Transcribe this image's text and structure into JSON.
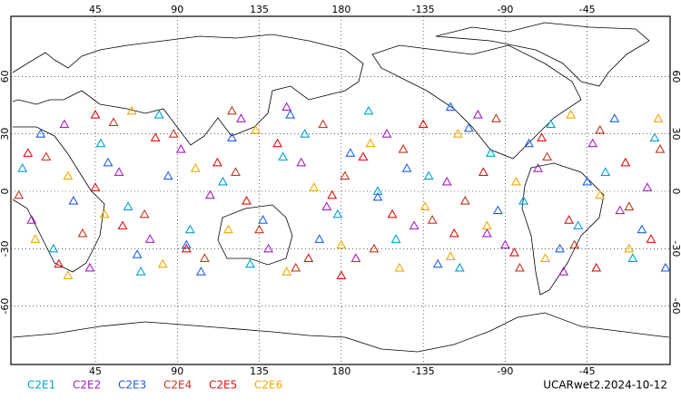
{
  "chart_data": {
    "type": "scatter",
    "xlim": [
      0,
      360
    ],
    "ylim": [
      -90,
      90
    ],
    "grid": true,
    "xticks": [
      45,
      90,
      135,
      180,
      {
        "value": 225,
        "label": "-135"
      },
      {
        "value": 270,
        "label": "-90"
      },
      {
        "value": 315,
        "label": "-45"
      }
    ],
    "yticks": [
      60,
      30,
      0,
      -30,
      -60
    ],
    "footer": "UCARwet2.2024-10-12",
    "series": [
      {
        "name": "C2E1",
        "color": "#00a0d0",
        "x": [
          5,
          22,
          48,
          63,
          80,
          97,
          115,
          130,
          148,
          160,
          178,
          195,
          210,
          228,
          245,
          262,
          280,
          295,
          310,
          325,
          340,
          352,
          70,
          200
        ],
        "y": [
          12,
          -30,
          25,
          -8,
          40,
          -20,
          5,
          -38,
          18,
          30,
          -12,
          42,
          -25,
          8,
          -40,
          20,
          -5,
          35,
          -18,
          10,
          -35,
          28,
          -42,
          0
        ]
      },
      {
        "name": "C2E2",
        "color": "#a020c0",
        "x": [
          10,
          28,
          42,
          58,
          75,
          92,
          108,
          125,
          140,
          158,
          172,
          188,
          205,
          220,
          238,
          255,
          270,
          288,
          302,
          318,
          333,
          348,
          150,
          260
        ],
        "y": [
          -15,
          35,
          -40,
          10,
          -25,
          22,
          -2,
          38,
          -30,
          15,
          -8,
          -35,
          30,
          -18,
          5,
          40,
          -28,
          12,
          -42,
          25,
          -10,
          2,
          44,
          -22
        ]
      },
      {
        "name": "C2E3",
        "color": "#2060e0",
        "x": [
          15,
          33,
          52,
          68,
          85,
          103,
          120,
          137,
          152,
          168,
          185,
          200,
          216,
          233,
          250,
          266,
          283,
          300,
          315,
          330,
          345,
          358,
          95,
          240
        ],
        "y": [
          30,
          -5,
          15,
          -33,
          8,
          -42,
          28,
          -15,
          40,
          -25,
          20,
          -3,
          12,
          -38,
          33,
          -10,
          25,
          -30,
          5,
          38,
          -20,
          -40,
          -28,
          44
        ]
      },
      {
        "name": "C2E4",
        "color": "#c03820",
        "x": [
          3,
          18,
          38,
          55,
          72,
          88,
          105,
          122,
          135,
          155,
          170,
          182,
          198,
          214,
          230,
          248,
          265,
          278,
          293,
          308,
          322,
          338,
          355,
          120
        ],
        "y": [
          -2,
          18,
          -22,
          36,
          -12,
          30,
          -35,
          10,
          -20,
          -40,
          35,
          8,
          -30,
          22,
          -15,
          -5,
          38,
          -40,
          18,
          -28,
          32,
          -8,
          22,
          42
        ]
      },
      {
        "name": "C2E5",
        "color": "#e01010",
        "x": [
          8,
          25,
          45,
          60,
          78,
          95,
          112,
          128,
          145,
          162,
          175,
          192,
          208,
          225,
          242,
          258,
          275,
          290,
          305,
          320,
          336,
          350,
          45,
          180
        ],
        "y": [
          20,
          -38,
          2,
          -18,
          28,
          -30,
          15,
          -5,
          25,
          -35,
          -2,
          18,
          -12,
          35,
          -22,
          10,
          -32,
          28,
          -15,
          -40,
          15,
          -25,
          40,
          -44
        ]
      },
      {
        "name": "C2E6",
        "color": "#f0a800",
        "x": [
          12,
          30,
          50,
          65,
          82,
          100,
          118,
          133,
          150,
          165,
          180,
          196,
          212,
          226,
          244,
          260,
          276,
          292,
          306,
          322,
          338,
          354,
          240,
          30
        ],
        "y": [
          -25,
          8,
          -12,
          42,
          -38,
          12,
          -20,
          32,
          -42,
          2,
          -28,
          25,
          -40,
          -8,
          30,
          -18,
          5,
          -35,
          40,
          -2,
          -30,
          38,
          -34,
          -44
        ]
      }
    ]
  }
}
